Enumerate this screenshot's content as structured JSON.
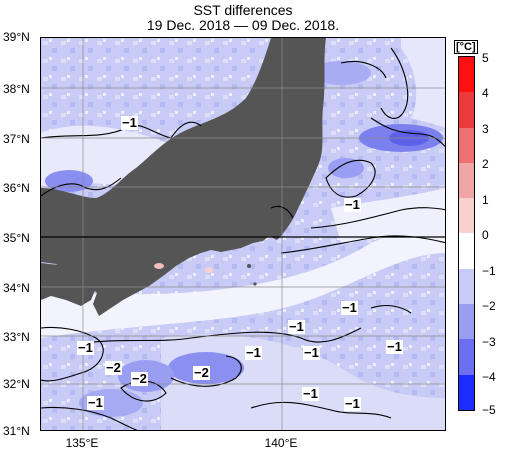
{
  "title": {
    "line1": "SST differences",
    "line2": "19 Dec. 2018 — 09 Dec. 2018."
  },
  "axes": {
    "y_labels": [
      "39°N",
      "38°N",
      "37°N",
      "36°N",
      "35°N",
      "34°N",
      "33°N",
      "32°N",
      "31°N"
    ],
    "x_labels": [
      "135°E",
      "140°E"
    ]
  },
  "colorbar": {
    "unit": "[°C]",
    "ticks": [
      "5",
      "4",
      "3",
      "2",
      "1",
      "0",
      "−1",
      "−2",
      "−3",
      "−4",
      "−5"
    ],
    "colors": {
      "neg5": "#1a2cff",
      "neg4": "#3d4dff",
      "neg3": "#6c6ff0",
      "neg2": "#9a9ef2",
      "neg1": "#c8cbf6",
      "zero": "#ffffff",
      "pos1": "#f8d0d0",
      "pos2": "#f2a5a5",
      "pos3": "#ee7070",
      "pos4": "#ec3a3a",
      "pos5": "#ff1010"
    }
  },
  "land_color": "#555555",
  "contour_labels": [
    "−1",
    "−1",
    "−1",
    "−1",
    "−1",
    "−1",
    "−2",
    "−2",
    "−2",
    "−1",
    "−1",
    "−1",
    "−1",
    "−1"
  ]
}
